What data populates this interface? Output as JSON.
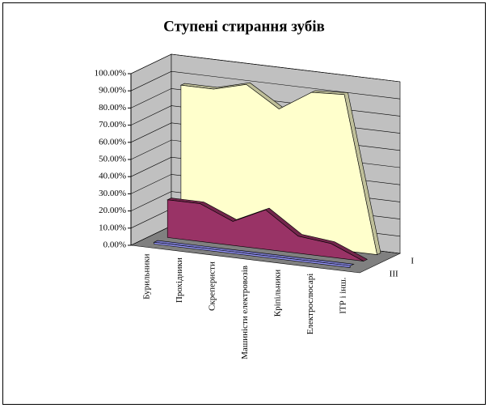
{
  "chart_data": {
    "type": "area3d",
    "title": "Ступені стирання зубів",
    "categories": [
      "Бурильники",
      "Прохідники",
      "Скреперисти",
      "Машиністи електровозів",
      "Кріпільники",
      "Електрослюсарі",
      "ІТР і інш."
    ],
    "series": [
      {
        "name": "I",
        "color": "#ffffcc",
        "values": [
          85,
          85,
          90,
          78,
          90,
          91,
          0
        ]
      },
      {
        "name": null,
        "color": "#993366",
        "values": [
          22,
          22,
          14,
          23,
          10,
          8,
          0
        ]
      },
      {
        "name": "III",
        "color": "#9999ff",
        "values": [
          1,
          1,
          1,
          1,
          1,
          1,
          1
        ]
      }
    ],
    "ylim": [
      0,
      100
    ],
    "yticks": [
      {
        "value": 0,
        "label": "0.00%"
      },
      {
        "value": 10,
        "label": "10.00%"
      },
      {
        "value": 20,
        "label": "20.00%"
      },
      {
        "value": 30,
        "label": "30.00%"
      },
      {
        "value": 40,
        "label": "40.00%"
      },
      {
        "value": 50,
        "label": "50.00%"
      },
      {
        "value": 60,
        "label": "60.00%"
      },
      {
        "value": 70,
        "label": "70.00%"
      },
      {
        "value": 80,
        "label": "80.00%"
      },
      {
        "value": 90,
        "label": "90.00%"
      },
      {
        "value": 100,
        "label": "100.00%"
      }
    ],
    "grid": true
  }
}
